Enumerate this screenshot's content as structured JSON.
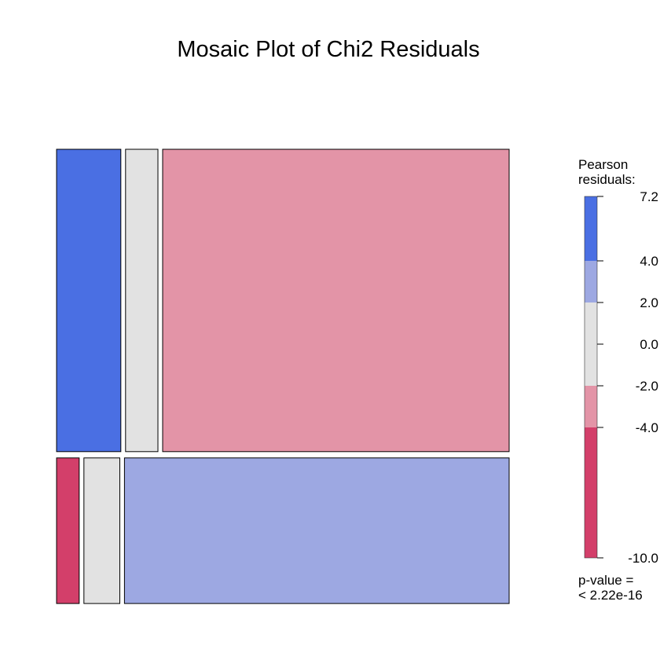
{
  "chart_data": {
    "type": "mosaic",
    "title": "Mosaic Plot of Chi2 Residuals",
    "rows": [
      {
        "proportion": 0.675,
        "cells": [
          {
            "proportion": 0.145,
            "residual_band": "4.0 to 7.2",
            "color": "#4A6FE3"
          },
          {
            "proportion": 0.073,
            "residual_band": "-2.0 to 2.0",
            "color": "#E2E2E2"
          },
          {
            "proportion": 0.782,
            "residual_band": "-4.0 to -2.0",
            "color": "#E394A7"
          }
        ]
      },
      {
        "proportion": 0.325,
        "cells": [
          {
            "proportion": 0.051,
            "residual_band": "-10.0 to -4.0",
            "color": "#D33F6A"
          },
          {
            "proportion": 0.081,
            "residual_band": "-2.0 to 2.0",
            "color": "#E2E2E2"
          },
          {
            "proportion": 0.868,
            "residual_band": "2.0 to 4.0",
            "color": "#9DA8E2"
          }
        ]
      }
    ],
    "legend": {
      "title_line1": "Pearson",
      "title_line2": "residuals:",
      "min": -10.0,
      "max": 7.2,
      "bands": [
        {
          "from": 4.0,
          "to": 7.2,
          "color": "#4A6FE3"
        },
        {
          "from": 2.0,
          "to": 4.0,
          "color": "#9DA8E2"
        },
        {
          "from": -2.0,
          "to": 2.0,
          "color": "#E2E2E2"
        },
        {
          "from": -4.0,
          "to": -2.0,
          "color": "#E394A7"
        },
        {
          "from": -10.0,
          "to": -4.0,
          "color": "#D33F6A"
        }
      ],
      "ticks": [
        {
          "value": 7.2,
          "label": "7.2"
        },
        {
          "value": 4.0,
          "label": "4.0"
        },
        {
          "value": 2.0,
          "label": "2.0"
        },
        {
          "value": 0.0,
          "label": "0.0"
        },
        {
          "value": -2.0,
          "label": "-2.0"
        },
        {
          "value": -4.0,
          "label": "-4.0"
        },
        {
          "value": -10.0,
          "label": "-10.0"
        }
      ],
      "pvalue_line1": "p-value =",
      "pvalue_line2": "< 2.22e-16"
    }
  }
}
